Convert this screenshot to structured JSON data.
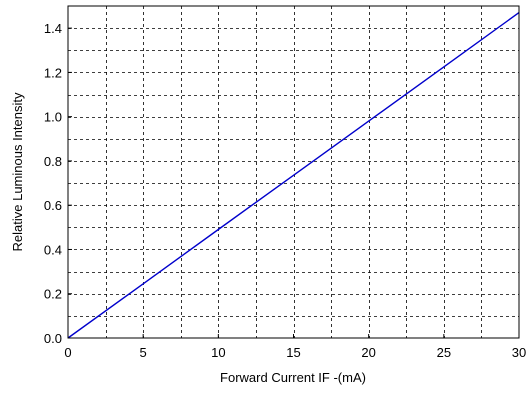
{
  "chart_data": {
    "type": "line",
    "title": "",
    "xlabel": "Forward Current IF -(mA)",
    "ylabel": "Relative Luminous Intensity",
    "xlim": [
      0,
      30
    ],
    "ylim": [
      0,
      1.5
    ],
    "x_ticks": [
      0,
      5,
      10,
      15,
      20,
      25,
      30
    ],
    "x_tick_labels": [
      "0",
      "5",
      "10",
      "15",
      "20",
      "25",
      "30"
    ],
    "y_ticks": [
      0,
      0.2,
      0.4,
      0.6,
      0.8,
      1.0,
      1.2,
      1.4
    ],
    "y_tick_labels": [
      "0.0",
      "0.2",
      "0.4",
      "0.6",
      "0.8",
      "1.0",
      "1.2",
      "1.4"
    ],
    "x_minor_step": 2.5,
    "y_minor_step": 0.1,
    "grid": true,
    "grid_style": "dashed",
    "legend": "none",
    "series": [
      {
        "x": [
          0,
          5,
          10,
          15,
          20,
          25,
          30
        ],
        "y": [
          0,
          0.245,
          0.49,
          0.735,
          0.98,
          1.225,
          1.47
        ],
        "color": "#0000cc"
      }
    ]
  }
}
